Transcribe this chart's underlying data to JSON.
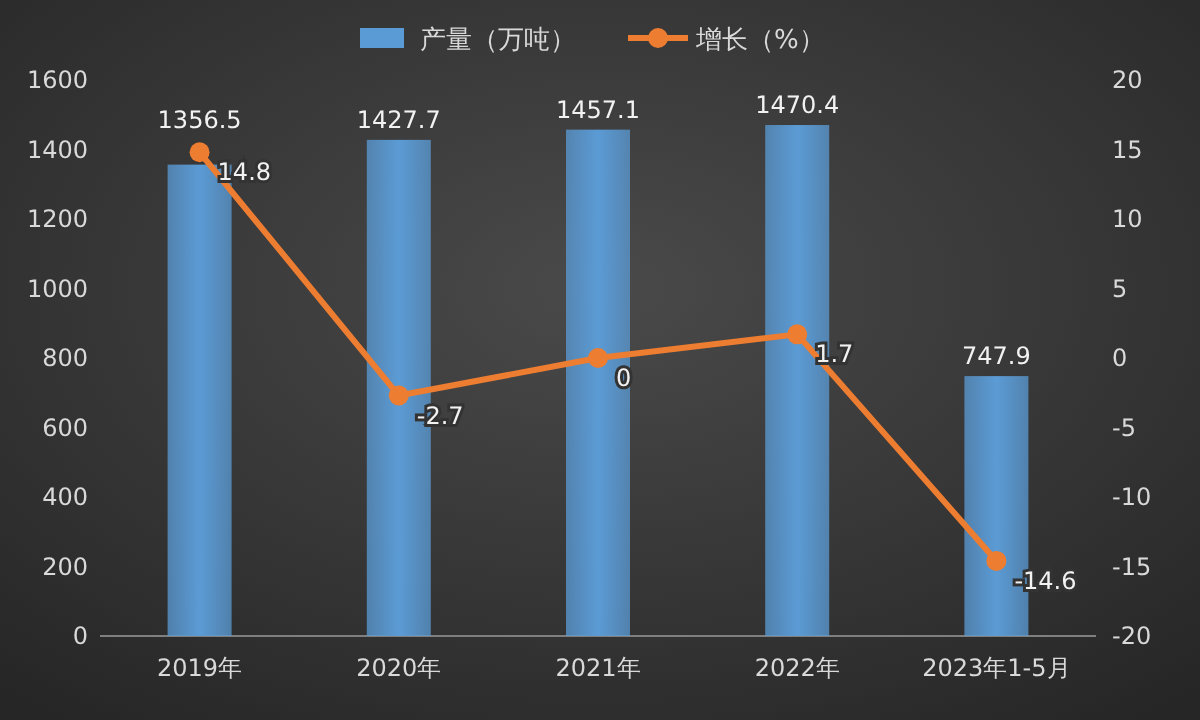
{
  "chart_data": {
    "type": "bar",
    "categories": [
      "2019年",
      "2020年",
      "2021年",
      "2022年",
      "2023年1-5月"
    ],
    "series": [
      {
        "name": "产量（万吨）",
        "color": "#5b9bd5",
        "values": [
          1356.5,
          1427.7,
          1457.1,
          1470.4,
          747.9
        ]
      },
      {
        "name": "增长（%）",
        "type": "line",
        "axis": "y2",
        "color": "#ed7d31",
        "values": [
          14.8,
          -2.7,
          0,
          1.7,
          -14.6
        ]
      }
    ],
    "ylim": [
      0,
      1600
    ],
    "yticks": [
      0,
      200,
      400,
      600,
      800,
      1000,
      1200,
      1400,
      1600
    ],
    "y2lim": [
      -20,
      20
    ],
    "y2ticks": [
      -20,
      -15,
      -10,
      -5,
      0,
      5,
      10,
      15,
      20
    ],
    "data_labels": true,
    "legend": "top",
    "marker": "circle",
    "line_style": "solid"
  }
}
